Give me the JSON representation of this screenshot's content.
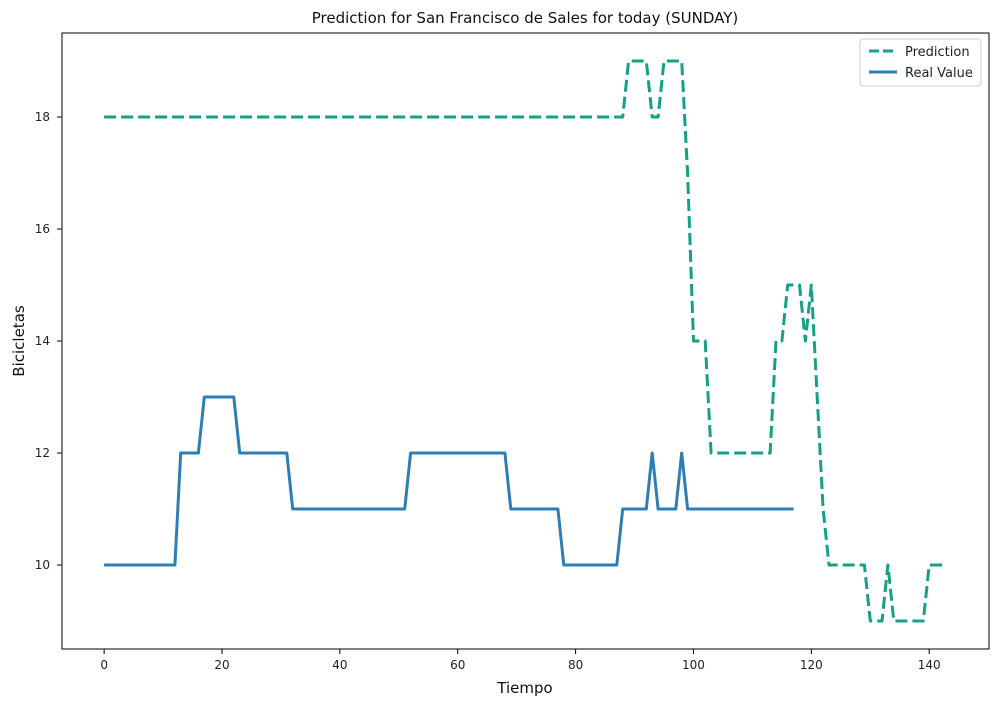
{
  "chart_data": {
    "type": "line",
    "title": "Prediction for San Francisco de Sales for today (SUNDAY)",
    "xlabel": "Tiempo",
    "ylabel": "Bicicletas",
    "xlim": [
      -7.15,
      150.15
    ],
    "ylim": [
      8.5,
      19.5
    ],
    "xticks": [
      0,
      20,
      40,
      60,
      80,
      100,
      120,
      140
    ],
    "yticks": [
      10,
      12,
      14,
      16,
      18
    ],
    "grid": false,
    "legend": "top-right",
    "series": [
      {
        "name": "Prediction",
        "color": "#16a085",
        "style": "dashed",
        "points": [
          [
            0,
            18
          ],
          [
            88,
            18
          ],
          [
            89,
            19
          ],
          [
            92,
            19
          ],
          [
            93,
            18
          ],
          [
            94,
            18
          ],
          [
            95,
            19
          ],
          [
            98,
            19
          ],
          [
            99,
            17
          ],
          [
            100,
            14
          ],
          [
            102,
            14
          ],
          [
            103,
            12
          ],
          [
            113,
            12
          ],
          [
            114,
            14
          ],
          [
            115,
            14
          ],
          [
            116,
            15
          ],
          [
            118,
            15
          ],
          [
            119,
            14
          ],
          [
            120,
            15
          ],
          [
            121,
            13
          ],
          [
            122,
            11
          ],
          [
            123,
            10
          ],
          [
            129,
            10
          ],
          [
            130,
            9
          ],
          [
            132,
            9
          ],
          [
            133,
            10
          ],
          [
            134,
            9
          ],
          [
            139,
            9
          ],
          [
            140,
            10
          ],
          [
            143,
            10
          ]
        ]
      },
      {
        "name": "Real Value",
        "color": "#2e7db3",
        "style": "solid",
        "points": [
          [
            0,
            10
          ],
          [
            12,
            10
          ],
          [
            13,
            12
          ],
          [
            16,
            12
          ],
          [
            17,
            13
          ],
          [
            22,
            13
          ],
          [
            23,
            12
          ],
          [
            31,
            12
          ],
          [
            32,
            11
          ],
          [
            51,
            11
          ],
          [
            52,
            12
          ],
          [
            68,
            12
          ],
          [
            69,
            11
          ],
          [
            77,
            11
          ],
          [
            78,
            10
          ],
          [
            87,
            10
          ],
          [
            88,
            11
          ],
          [
            92,
            11
          ],
          [
            93,
            12
          ],
          [
            94,
            11
          ],
          [
            97,
            11
          ],
          [
            98,
            12
          ],
          [
            99,
            11
          ],
          [
            117,
            11
          ]
        ]
      }
    ]
  }
}
